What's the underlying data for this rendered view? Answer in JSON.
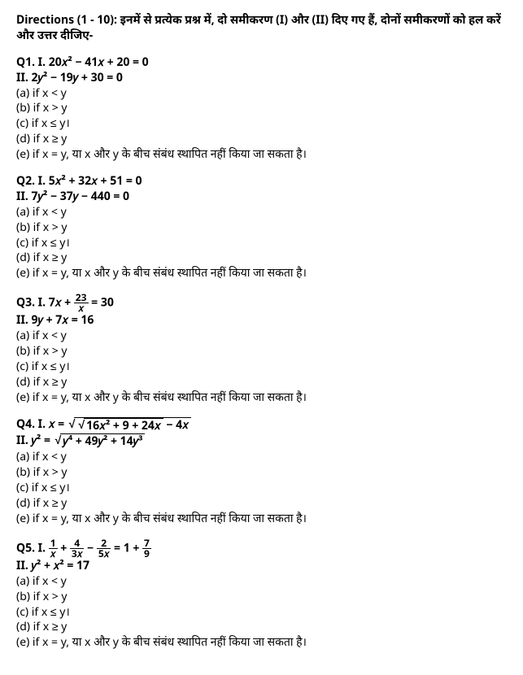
{
  "directions": "Directions (1 - 10): इनमें से प्रत्येक प्रश्न में, दो समीकरण (I) और (II) दिए गए हैं, दोनों समीकरणों को हल करें और उत्तर दीजिए-",
  "options": {
    "a": "(a) if x < y",
    "b": "(b) if x > y",
    "c": "(c) if x ≤ y।",
    "d": "(d) if x ≥ y",
    "e": "(e) if x = y, या x और y के बीच संबंध स्थापित नहीं किया जा सकता है।"
  },
  "q1": {
    "label": "Q1. I. ",
    "eq1": "20𝑥² − 41𝑥 + 20 = 0",
    "label2": "II. ",
    "eq2": "2𝑦² − 19𝑦 + 30 = 0"
  },
  "q2": {
    "label": "Q2. I. ",
    "eq1": "5𝑥² + 32𝑥 + 51 = 0",
    "label2": "II. ",
    "eq2": "7𝑦² − 37𝑦 − 440 = 0"
  },
  "q3": {
    "label": "Q3. I. ",
    "eq1_pre": "7𝑥 + ",
    "eq1_frac_num": "23",
    "eq1_frac_den": "𝑥",
    "eq1_post": " = 30",
    "label2": "II. ",
    "eq2": "9𝑦 + 7𝑥 = 16"
  },
  "q4": {
    "label": "Q4. I. ",
    "eq1_pre": "𝑥 = ",
    "eq1_inner": "16𝑥² + 9 + 24𝑥",
    "eq1_post": " − 4𝑥",
    "label2": "II. ",
    "eq2_pre": "𝑦² = ",
    "eq2_inner": "𝑦⁴ + 49𝑦² + 14𝑦³"
  },
  "q5": {
    "label": "Q5. I. ",
    "f1n": "1",
    "f1d": "𝑥",
    "plus1": " + ",
    "f2n": "4",
    "f2d": "3𝑥",
    "minus": " − ",
    "f3n": "2",
    "f3d": "5𝑥",
    "equals": " = 1 + ",
    "f4n": "7",
    "f4d": "9",
    "label2": "II. ",
    "eq2": "𝑦² + 𝑥² = 17"
  }
}
